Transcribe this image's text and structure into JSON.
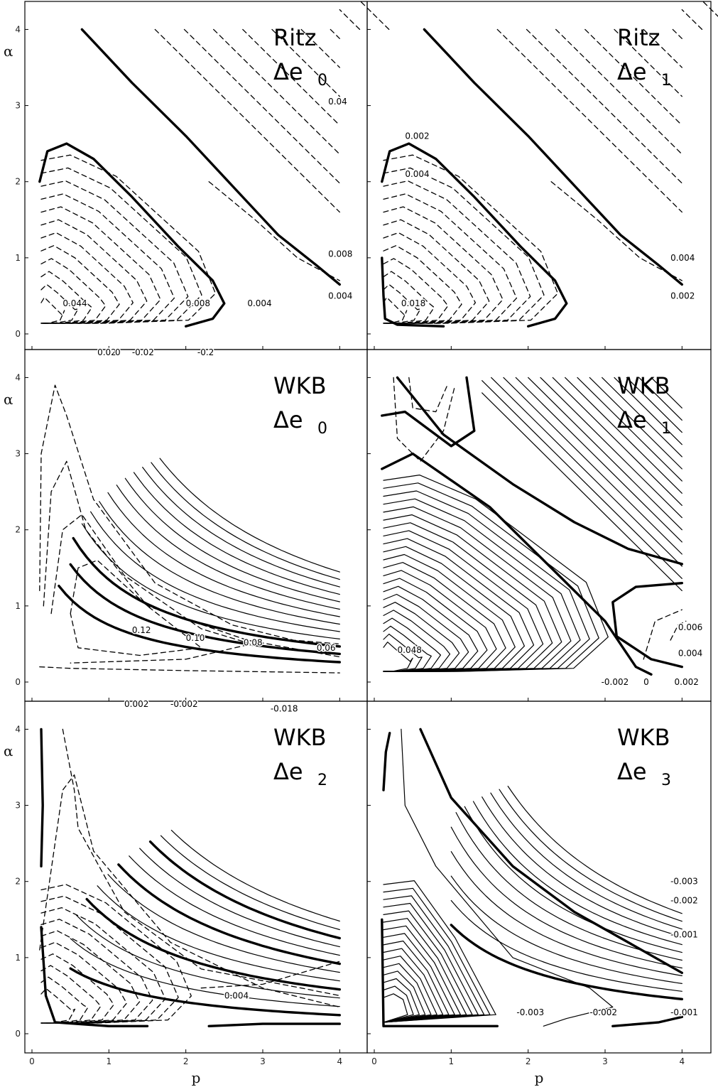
{
  "chart_data": [
    {
      "type": "contour",
      "method": "Ritz",
      "quantity": "Δe",
      "index": "0",
      "xlabel": "p",
      "ylabel": "α",
      "xlim": [
        0,
        4.2
      ],
      "ylim": [
        0,
        4.2
      ],
      "xticks": [
        "0",
        "1",
        "2",
        "3",
        "4"
      ],
      "yticks": [
        "0",
        "1",
        "2",
        "3",
        "4"
      ],
      "contour_labels": [
        {
          "text": "0.044",
          "x": 0.4,
          "y": 0.4
        },
        {
          "text": "0.008",
          "x": 2.0,
          "y": 0.4
        },
        {
          "text": "0.004",
          "x": 2.8,
          "y": 0.4
        },
        {
          "text": "0.008",
          "x": 3.85,
          "y": 1.05
        },
        {
          "text": "0.004",
          "x": 3.85,
          "y": 0.5
        },
        {
          "text": "0.04",
          "x": 3.85,
          "y": 3.05
        }
      ]
    },
    {
      "type": "contour",
      "method": "Ritz",
      "quantity": "Δe",
      "index": "1",
      "xlabel": "p",
      "ylabel": "α",
      "xlim": [
        0,
        4.2
      ],
      "ylim": [
        0,
        4.2
      ],
      "xticks": [
        "0",
        "1",
        "2",
        "3",
        "4"
      ],
      "yticks": [
        "0",
        "1",
        "2",
        "3",
        "4"
      ],
      "contour_labels": [
        {
          "text": "0.002",
          "x": 0.4,
          "y": 2.6
        },
        {
          "text": "0.004",
          "x": 0.4,
          "y": 2.1
        },
        {
          "text": "0.018",
          "x": 0.35,
          "y": 0.4
        },
        {
          "text": "0.004",
          "x": 3.85,
          "y": 1.0
        },
        {
          "text": "0.002",
          "x": 3.85,
          "y": 0.5
        }
      ]
    },
    {
      "type": "contour",
      "method": "WKB",
      "quantity": "Δe",
      "index": "0",
      "xlabel": "p",
      "ylabel": "α",
      "xlim": [
        0,
        4.2
      ],
      "ylim": [
        0,
        4.2
      ],
      "xticks": [
        "0",
        "1",
        "2",
        "3",
        "4"
      ],
      "yticks": [
        "0",
        "1",
        "2",
        "3",
        "4"
      ],
      "contour_labels": [
        {
          "text": "0.02",
          "x": 0.85,
          "y": 4.33
        },
        {
          "text": "0",
          "x": 1.08,
          "y": 4.33
        },
        {
          "text": "-0.02",
          "x": 1.3,
          "y": 4.33
        },
        {
          "text": "-0.2",
          "x": 2.15,
          "y": 4.33
        },
        {
          "text": "0.12",
          "x": 1.3,
          "y": 0.68
        },
        {
          "text": "0.10",
          "x": 2.0,
          "y": 0.58
        },
        {
          "text": "0.08",
          "x": 2.75,
          "y": 0.52
        },
        {
          "text": "0.06",
          "x": 3.7,
          "y": 0.45
        }
      ]
    },
    {
      "type": "contour",
      "method": "WKB",
      "quantity": "Δe",
      "index": "1",
      "xlabel": "p",
      "ylabel": "α",
      "xlim": [
        0,
        4.2
      ],
      "ylim": [
        0,
        4.2
      ],
      "xticks": [
        "0",
        "1",
        "2",
        "3",
        "4"
      ],
      "yticks": [
        "0",
        "1",
        "2",
        "3",
        "4"
      ],
      "contour_labels": [
        {
          "text": "0.048",
          "x": 0.3,
          "y": 0.42
        },
        {
          "text": "-0.002",
          "x": 2.95,
          "y": 0.0
        },
        {
          "text": "0",
          "x": 3.5,
          "y": 0.0
        },
        {
          "text": "0.002",
          "x": 3.9,
          "y": 0.0
        },
        {
          "text": "0.006",
          "x": 3.95,
          "y": 0.72
        },
        {
          "text": "0.004",
          "x": 3.95,
          "y": 0.38
        }
      ]
    },
    {
      "type": "contour",
      "method": "WKB",
      "quantity": "Δe",
      "index": "2",
      "xlabel": "p",
      "ylabel": "α",
      "xlim": [
        0,
        4.2
      ],
      "ylim": [
        0,
        4.2
      ],
      "xticks": [
        "0",
        "1",
        "2",
        "3",
        "4"
      ],
      "yticks": [
        "0",
        "1",
        "2",
        "3",
        "4"
      ],
      "contour_labels": [
        {
          "text": "0.002",
          "x": 1.2,
          "y": 4.33
        },
        {
          "text": "-0.002",
          "x": 1.8,
          "y": 4.33
        },
        {
          "text": "-0.018",
          "x": 3.1,
          "y": 4.27
        },
        {
          "text": "0.004",
          "x": 2.5,
          "y": 0.5
        }
      ]
    },
    {
      "type": "contour",
      "method": "WKB",
      "quantity": "Δe",
      "index": "3",
      "xlabel": "p",
      "ylabel": "α",
      "xlim": [
        0,
        4.2
      ],
      "ylim": [
        0,
        4.2
      ],
      "xticks": [
        "0",
        "1",
        "2",
        "3",
        "4"
      ],
      "yticks": [
        "0",
        "1",
        "2",
        "3",
        "4"
      ],
      "contour_labels": [
        {
          "text": "-0.003",
          "x": 3.85,
          "y": 2.0
        },
        {
          "text": "-0.002",
          "x": 3.85,
          "y": 1.75
        },
        {
          "text": "-0.001",
          "x": 3.85,
          "y": 1.3
        },
        {
          "text": "-0.003",
          "x": 1.85,
          "y": 0.28
        },
        {
          "text": "-0.002",
          "x": 2.8,
          "y": 0.28
        },
        {
          "text": "-0.001",
          "x": 3.85,
          "y": 0.28
        }
      ]
    }
  ]
}
